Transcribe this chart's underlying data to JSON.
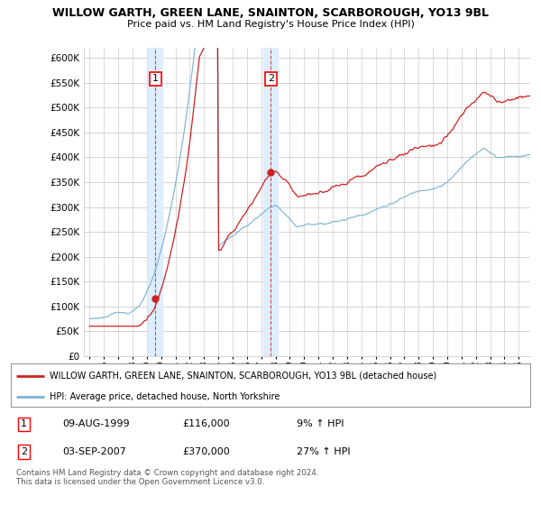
{
  "title_line1": "WILLOW GARTH, GREEN LANE, SNAINTON, SCARBOROUGH, YO13 9BL",
  "title_line2": "Price paid vs. HM Land Registry's House Price Index (HPI)",
  "ytick_values": [
    0,
    50000,
    100000,
    150000,
    200000,
    250000,
    300000,
    350000,
    400000,
    450000,
    500000,
    550000,
    600000
  ],
  "hpi_color": "#7ab0d4",
  "price_color": "#cc2222",
  "sale1_year": 1999.6,
  "sale1_price": 116000,
  "sale1_label": "1",
  "sale2_year": 2007.67,
  "sale2_price": 370000,
  "sale2_label": "2",
  "legend_property": "WILLOW GARTH, GREEN LANE, SNAINTON, SCARBOROUGH, YO13 9BL (detached house)",
  "legend_hpi": "HPI: Average price, detached house, North Yorkshire",
  "table_row1": [
    "1",
    "09-AUG-1999",
    "£116,000",
    "9% ↑ HPI"
  ],
  "table_row2": [
    "2",
    "03-SEP-2007",
    "£370,000",
    "27% ↑ HPI"
  ],
  "footer": "Contains HM Land Registry data © Crown copyright and database right 2024.\nThis data is licensed under the Open Government Licence v3.0.",
  "background_color": "#ffffff",
  "grid_color": "#cccccc",
  "shade_color": "#ddeeff"
}
